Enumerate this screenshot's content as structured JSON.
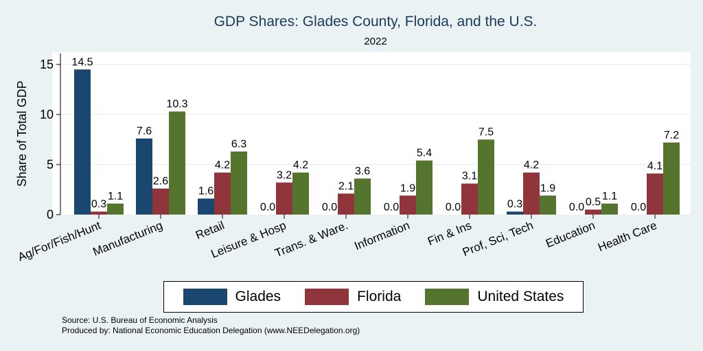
{
  "chart_data": {
    "type": "bar",
    "title": "GDP Shares: Glades County, Florida, and the U.S.",
    "subtitle": "2022",
    "xlabel": "",
    "ylabel": "Share of Total GDP",
    "ylim": [
      0,
      16
    ],
    "yticks": [
      0,
      5,
      10,
      15
    ],
    "grid": true,
    "legend_position": "bottom",
    "categories": [
      "Ag/For/Fish/Hunt",
      "Manufacturing",
      "Retail",
      "Leisure & Hosp",
      "Trans. & Ware.",
      "Information",
      "Fin & Ins",
      "Prof, Sci, Tech",
      "Education",
      "Health Care"
    ],
    "series": [
      {
        "name": "Glades",
        "color": "#1a476f",
        "values": [
          14.5,
          7.6,
          1.6,
          0.0,
          0.0,
          0.0,
          0.0,
          0.3,
          0.0,
          0.0
        ]
      },
      {
        "name": "Florida",
        "color": "#90353b",
        "values": [
          0.3,
          2.6,
          4.2,
          3.2,
          2.1,
          1.9,
          3.1,
          4.2,
          0.5,
          4.1
        ]
      },
      {
        "name": "United States",
        "color": "#55752f",
        "values": [
          1.1,
          10.3,
          6.3,
          4.2,
          3.6,
          5.4,
          7.5,
          1.9,
          1.1,
          7.2
        ]
      }
    ]
  },
  "footer": {
    "source": "Source: U.S. Bureau of Economic Analysis",
    "produced_by": "Produced by: National Economic Education Delegation (www.NEEDelegation.org)"
  }
}
